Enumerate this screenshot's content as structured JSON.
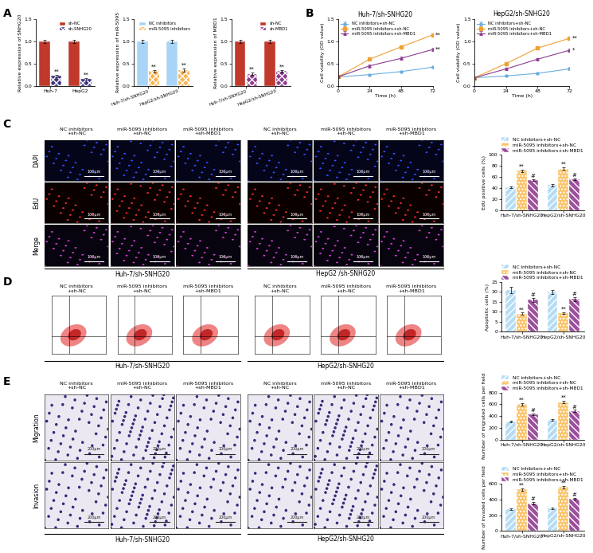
{
  "panel_labels": [
    "A",
    "B",
    "C",
    "D",
    "E"
  ],
  "chart_data": [
    {
      "type": "bar",
      "ylabel": "Relative expression of SNHG20",
      "categories": [
        "Huh-7",
        "HepG2"
      ],
      "series": [
        {
          "name": "sh-NC",
          "color": "#c0392b",
          "values": [
            1.0,
            1.0
          ],
          "errors": [
            0.04,
            0.04
          ],
          "annotations": [
            null,
            null
          ]
        },
        {
          "name": "sh-SNHG20",
          "color": "#3d3580",
          "values": [
            0.22,
            0.15
          ],
          "errors": [
            0.03,
            0.02
          ],
          "annotations": [
            "**",
            "**"
          ]
        }
      ],
      "ylim": [
        0.0,
        1.5
      ],
      "yticks": [
        0.0,
        0.5,
        1.0,
        1.5
      ],
      "legend": "upper right"
    },
    {
      "type": "bar",
      "ylabel": "Relative expression of miR-5095",
      "categories": [
        "Huh-7/sh-SNHG20",
        "HepG2/sh-SNHG20"
      ],
      "series": [
        {
          "name": "NC inhibitors",
          "color": "#a8d5f7",
          "values": [
            1.0,
            1.0
          ],
          "errors": [
            0.03,
            0.03
          ],
          "annotations": [
            null,
            null
          ]
        },
        {
          "name": "miR-5095 inhibitors",
          "color": "#f6b352",
          "values": [
            0.33,
            0.35
          ],
          "errors": [
            0.03,
            0.03
          ],
          "annotations": [
            "**",
            "**"
          ]
        }
      ],
      "ylim": [
        0.0,
        1.5
      ],
      "yticks": [
        0.0,
        0.5,
        1.0,
        1.5
      ],
      "legend": "upper right"
    },
    {
      "type": "bar",
      "ylabel": "Relative expression of MBD1",
      "categories": [
        "Huh-7/sh-SNHG20",
        "HepG2/sh-SNHG20"
      ],
      "series": [
        {
          "name": "sh-NC",
          "color": "#c0392b",
          "values": [
            1.0,
            1.0
          ],
          "errors": [
            0.04,
            0.04
          ],
          "annotations": [
            null,
            null
          ]
        },
        {
          "name": "sh-MBD1",
          "color": "#8e3b8e",
          "values": [
            0.27,
            0.33
          ],
          "errors": [
            0.03,
            0.03
          ],
          "annotations": [
            "**",
            "**"
          ]
        }
      ],
      "ylim": [
        0.0,
        1.5
      ],
      "yticks": [
        0.0,
        0.5,
        1.0,
        1.5
      ],
      "legend": "upper right"
    },
    {
      "type": "line",
      "title": "Huh-7/sh-SNHG20",
      "xlabel": "Time (h)",
      "ylabel": "Cell viability (OD value)",
      "x": [
        0,
        24,
        48,
        72
      ],
      "xlim": [
        0,
        72
      ],
      "xticks": [
        0,
        24,
        48,
        72
      ],
      "series": [
        {
          "name": "NC inhibitors+sh-NC",
          "color": "#6aaee0",
          "marker": "circle",
          "values": [
            0.2,
            0.25,
            0.32,
            0.42
          ],
          "errors": [
            0.02,
            0.02,
            0.02,
            0.03
          ],
          "annotations": [
            null,
            null,
            null,
            null
          ]
        },
        {
          "name": "miR-5095 inhibitors+sh-NC",
          "color": "#f0a030",
          "marker": "square",
          "values": [
            0.2,
            0.6,
            0.88,
            1.15
          ],
          "errors": [
            0.02,
            0.03,
            0.03,
            0.04
          ],
          "annotations": [
            null,
            null,
            null,
            "**"
          ]
        },
        {
          "name": "miR-5095 inhibitors+sh-MBD1",
          "color": "#8e3b8e",
          "marker": "triangle",
          "values": [
            0.2,
            0.45,
            0.62,
            0.82
          ],
          "errors": [
            0.02,
            0.03,
            0.03,
            0.03
          ],
          "annotations": [
            null,
            null,
            null,
            "**"
          ]
        }
      ],
      "ylim": [
        0.0,
        1.5
      ],
      "yticks": [
        0.0,
        0.5,
        1.0,
        1.5
      ],
      "legend": "upper left"
    },
    {
      "type": "line",
      "title": "HepG2/sh-SNHG20",
      "xlabel": "Time (h)",
      "ylabel": "Cell viability (OD value)",
      "x": [
        0,
        24,
        48,
        72
      ],
      "xlim": [
        0,
        72
      ],
      "xticks": [
        0,
        24,
        48,
        72
      ],
      "series": [
        {
          "name": "NC inhibitors+sh-NC",
          "color": "#6aaee0",
          "marker": "circle",
          "values": [
            0.18,
            0.22,
            0.28,
            0.38
          ],
          "errors": [
            0.02,
            0.02,
            0.02,
            0.03
          ],
          "annotations": [
            null,
            null,
            null,
            null
          ]
        },
        {
          "name": "miR-5095 inhibitors+sh-NC",
          "color": "#f0a030",
          "marker": "square",
          "values": [
            0.18,
            0.5,
            0.85,
            1.07
          ],
          "errors": [
            0.02,
            0.03,
            0.03,
            0.04
          ],
          "annotations": [
            null,
            null,
            null,
            "**"
          ]
        },
        {
          "name": "miR-5095 inhibitors+sh-MBD1",
          "color": "#8e3b8e",
          "marker": "triangle",
          "values": [
            0.18,
            0.38,
            0.6,
            0.8
          ],
          "errors": [
            0.02,
            0.03,
            0.03,
            0.03
          ],
          "annotations": [
            null,
            null,
            null,
            "*"
          ]
        }
      ],
      "ylim": [
        0.0,
        1.5
      ],
      "yticks": [
        0.0,
        0.5,
        1.0,
        1.5
      ],
      "legend": "upper left"
    },
    {
      "type": "bar",
      "ylabel": "EdU positive cells (%)",
      "categories": [
        "Huh-7/sh-SNHG20",
        "HepG2/sh-SNHG20"
      ],
      "series": [
        {
          "name": "NC inhibitors+sh-NC",
          "color": "#b5dcf5",
          "values": [
            42,
            45
          ],
          "errors": [
            1.5,
            2
          ],
          "annotations": [
            null,
            null
          ]
        },
        {
          "name": "miR-5095 inhibitors+sh-NC",
          "color": "#fbc46a",
          "values": [
            71,
            75
          ],
          "errors": [
            2,
            2
          ],
          "annotations": [
            "**",
            "**"
          ]
        },
        {
          "name": "miR-5095 inhibitors+sh-MBD1",
          "color": "#9c4f9a",
          "values": [
            54,
            56
          ],
          "errors": [
            1.5,
            1.5
          ],
          "annotations": [
            "#",
            "#"
          ]
        }
      ],
      "ylim": [
        0,
        100
      ],
      "yticks": [
        0,
        20,
        40,
        60,
        80,
        100
      ],
      "legend": "lower left"
    },
    {
      "type": "bar",
      "ylabel": "Apoptotic cells (%)",
      "categories": [
        "Huh-7/sh-SNHG20",
        "HepG2/sh-SNHG20"
      ],
      "series": [
        {
          "name": "NC inhibitors+sh-NC",
          "color": "#b5dcf5",
          "values": [
            21,
            20
          ],
          "errors": [
            1.5,
            1
          ],
          "annotations": [
            null,
            null
          ]
        },
        {
          "name": "miR-5095 inhibitors+sh-NC",
          "color": "#fbc46a",
          "values": [
            9,
            9.5
          ],
          "errors": [
            0.6,
            0.4
          ],
          "annotations": [
            "**",
            "**"
          ]
        },
        {
          "name": "miR-5095 inhibitors+sh-MBD1",
          "color": "#9c4f9a",
          "values": [
            16,
            16.5
          ],
          "errors": [
            1,
            1
          ],
          "annotations": [
            "#",
            "#"
          ]
        }
      ],
      "ylim": [
        0,
        25
      ],
      "yticks": [
        0,
        5,
        10,
        15,
        20,
        25
      ],
      "legend": "lower left"
    },
    {
      "type": "bar",
      "ylabel": "Number of migrated cells per field",
      "categories": [
        "Huh-7/sh-SNHG20",
        "HepG2/sh-SNHG20"
      ],
      "series": [
        {
          "name": "NC inhibitors+sh-NC",
          "color": "#b5dcf5",
          "values": [
            310,
            340
          ],
          "errors": [
            15,
            15
          ],
          "annotations": [
            null,
            null
          ]
        },
        {
          "name": "miR-5095 inhibitors+sh-NC",
          "color": "#fbc46a",
          "values": [
            600,
            640
          ],
          "errors": [
            20,
            20
          ],
          "annotations": [
            "**",
            "**"
          ]
        },
        {
          "name": "miR-5095 inhibitors+sh-MBD1",
          "color": "#9c4f9a",
          "values": [
            430,
            490
          ],
          "errors": [
            20,
            15
          ],
          "annotations": [
            "#",
            "#"
          ]
        }
      ],
      "ylim": [
        0,
        800
      ],
      "yticks": [
        0,
        200,
        400,
        600,
        800
      ],
      "legend": "lower left"
    },
    {
      "type": "bar",
      "ylabel": "Number of invaded cells per field",
      "categories": [
        "Huh-7/sh-SNHG20",
        "HepG2/sh-SNHG20"
      ],
      "series": [
        {
          "name": "NC inhibitors+sh-NC",
          "color": "#b5dcf5",
          "values": [
            280,
            290
          ],
          "errors": [
            10,
            10
          ],
          "annotations": [
            null,
            null
          ]
        },
        {
          "name": "miR-5095 inhibitors+sh-NC",
          "color": "#fbc46a",
          "values": [
            530,
            560
          ],
          "errors": [
            15,
            15
          ],
          "annotations": [
            "**",
            "**"
          ]
        },
        {
          "name": "miR-5095 inhibitors+sh-MBD1",
          "color": "#9c4f9a",
          "values": [
            350,
            410
          ],
          "errors": [
            15,
            12
          ],
          "annotations": [
            "#",
            "#"
          ]
        }
      ],
      "ylim": [
        0,
        600
      ],
      "yticks": [
        0,
        200,
        400,
        600
      ],
      "legend": "lower left"
    }
  ],
  "edu_images": {
    "columns": [
      [
        "NC inhibitors",
        "+sh-NC"
      ],
      [
        "miR-5095 inhibitors",
        "+sh-NC"
      ],
      [
        "miR-5095 inhibitors",
        "+sh-MBD1"
      ]
    ],
    "rows": [
      "DAPI",
      "EdU",
      "Merge"
    ],
    "scale_bar": "100μm",
    "groups": [
      "Huh-7/sh-SNHG20",
      "HepG2 /sh-SNHG20"
    ]
  },
  "flow_plots": {
    "columns": [
      [
        "NC inhibitors",
        "+sh-NC"
      ],
      [
        "miR-5095 inhibitors",
        "+sh-NC"
      ],
      [
        "miR-5095 inhibitors",
        "+sh-MBD1"
      ]
    ],
    "groups": [
      "Huh-7/sh-SNHG20",
      "HepG2/sh-SNHG20"
    ]
  },
  "transwell_images": {
    "columns": [
      [
        "NC inhibitors",
        "+sh-NC"
      ],
      [
        "miR-5095 inhibitors",
        "+sh-NC"
      ],
      [
        "miR-5095 inhibitors",
        "+sh-MBD1"
      ]
    ],
    "rows": [
      "Migration",
      "Invasion"
    ],
    "scale_bar": "200μm",
    "groups": [
      "Huh-7/sh-SNHG20",
      "HepG2/sh-SNHG20"
    ]
  }
}
